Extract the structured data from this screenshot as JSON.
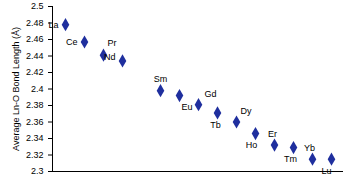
{
  "chart_data": {
    "type": "scatter",
    "ylabel": "Average Ln-O Bond Length (Å)",
    "categories": [
      "La",
      "Ce",
      "Pr",
      "Nd",
      null,
      "Sm",
      "Eu",
      "Gd",
      "Tb",
      "Dy",
      "Ho",
      "Er",
      "Tm",
      "Yb",
      "Lu"
    ],
    "values": [
      2.478,
      2.457,
      2.441,
      2.434,
      null,
      2.398,
      2.392,
      2.381,
      2.371,
      2.36,
      2.346,
      2.332,
      2.329,
      2.315,
      2.315
    ],
    "data_labels": true,
    "color": "#1f2f9e",
    "marker": "diamond",
    "ylim": [
      2.3,
      2.5
    ],
    "yticks": [
      2.3,
      2.32,
      2.34,
      2.36,
      2.38,
      2.4,
      2.42,
      2.44,
      2.46,
      2.48,
      2.5
    ],
    "tick_labels": "y",
    "grid": false
  }
}
